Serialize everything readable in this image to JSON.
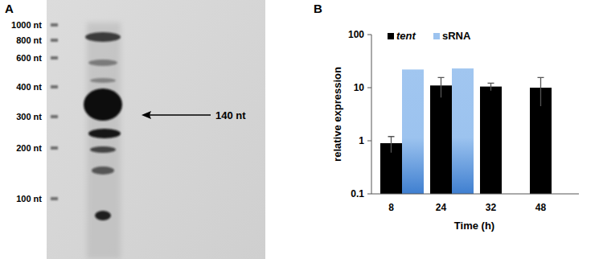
{
  "chart_data": {
    "type": "bar",
    "title": "B",
    "categories": [
      "8",
      "24",
      "32",
      "48"
    ],
    "series": [
      {
        "name": "tent",
        "color": "#000000",
        "values": [
          0.9,
          11,
          10.5,
          10
        ],
        "errors": [
          0.3,
          4.5,
          1.7,
          5.5
        ]
      },
      {
        "name": "sRNA",
        "color": "#9cc3ef",
        "values": [
          22,
          23,
          null,
          null
        ]
      }
    ],
    "x_label": "Time (h)",
    "y_label": "relative expression",
    "log": "y",
    "ylim": [
      0.1,
      100
    ],
    "yticks": [
      0.1,
      1,
      10,
      100
    ],
    "grid": false,
    "legend": "top-left"
  },
  "blot": {
    "panel_label": "A",
    "ladder": [
      "1000 nt",
      "800 nt",
      "600 nt",
      "400 nt",
      "300 nt",
      "200 nt",
      "100 nt"
    ],
    "arrow_label": "140 nt"
  }
}
